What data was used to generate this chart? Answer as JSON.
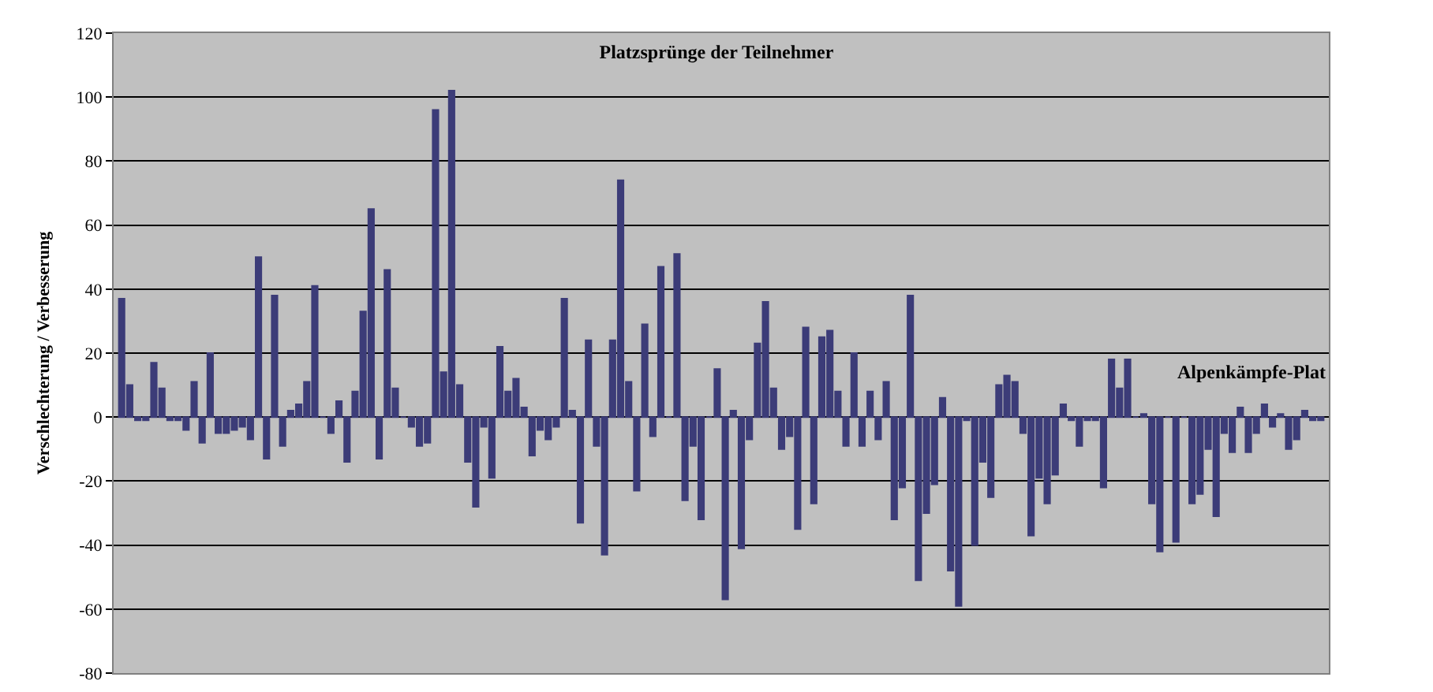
{
  "chart_data": {
    "type": "bar",
    "title": "Platzsprünge der Teilnehmer",
    "ylabel": "Verschlechterung / Verbesserung",
    "annotations": [
      "Alpenkämpfe-Plat"
    ],
    "categories": [
      null,
      null,
      null,
      null,
      null,
      null,
      null,
      null,
      null,
      null,
      null,
      null,
      null,
      null,
      null,
      null,
      null,
      null,
      null,
      null,
      null,
      null,
      null,
      null,
      null,
      null,
      null,
      null,
      null,
      null,
      null,
      null,
      null,
      null,
      null,
      null,
      null,
      null,
      null,
      null,
      null,
      null,
      null,
      null,
      null,
      null,
      null,
      null,
      null,
      null,
      null,
      null,
      null,
      null,
      null,
      null,
      null,
      null,
      null,
      null,
      null,
      null,
      null,
      null,
      null,
      null,
      null,
      null,
      null,
      null,
      null,
      null,
      null,
      null,
      null,
      null,
      null,
      null,
      null,
      null,
      null,
      null,
      null,
      null,
      null,
      null,
      null,
      null,
      null,
      null,
      null,
      null,
      null,
      null,
      null,
      null,
      null,
      null,
      null,
      null,
      null,
      null,
      null,
      null,
      null,
      null,
      null,
      null,
      null,
      null,
      null,
      null,
      null,
      null,
      null,
      null,
      null,
      null,
      null,
      null,
      null,
      null,
      null,
      null,
      null,
      null,
      null,
      null,
      null,
      null,
      null,
      null,
      null,
      null,
      null,
      null,
      null,
      null,
      null,
      null,
      null,
      null,
      null,
      null,
      null,
      null,
      null,
      null,
      null,
      null
    ],
    "values": [
      37,
      10,
      -1,
      -1,
      17,
      9,
      -1,
      -1,
      -4,
      11,
      -8,
      20,
      -5,
      -5,
      -4,
      -3,
      -7,
      50,
      -13,
      38,
      -9,
      2,
      4,
      11,
      41,
      0,
      -5,
      5,
      -14,
      8,
      33,
      65,
      -13,
      46,
      9,
      0,
      -3,
      -9,
      -8,
      96,
      14,
      102,
      10,
      -14,
      -28,
      -3,
      -19,
      22,
      8,
      12,
      3,
      -12,
      -4,
      -7,
      -3,
      37,
      2,
      -33,
      24,
      -9,
      -43,
      24,
      74,
      11,
      -23,
      29,
      -6,
      47,
      0,
      51,
      -26,
      -9,
      -32,
      0,
      15,
      -57,
      2,
      -41,
      -7,
      23,
      36,
      9,
      -10,
      -6,
      -35,
      28,
      -27,
      25,
      27,
      8,
      -9,
      20,
      -9,
      8,
      -7,
      11,
      -32,
      -22,
      38,
      -51,
      -30,
      -21,
      6,
      -48,
      -59,
      -1,
      -40,
      -14,
      -25,
      10,
      13,
      11,
      -5,
      -37,
      -19,
      -27,
      -18,
      4,
      -1,
      -9,
      -1,
      -1,
      -22,
      18,
      9,
      18,
      0,
      1,
      -27,
      -42,
      0,
      -39,
      0,
      -27,
      -24,
      -10,
      -31,
      -5,
      -11,
      3,
      -11,
      -5,
      4,
      -3,
      1,
      -10,
      -7,
      2,
      -1,
      -1
    ],
    "color": "#3c3c78",
    "ylim": [
      -80,
      120
    ],
    "yticks": [
      -80,
      -60,
      -40,
      -20,
      0,
      20,
      40,
      60,
      80,
      100,
      120
    ],
    "grid": true,
    "tick_labels": "y"
  }
}
